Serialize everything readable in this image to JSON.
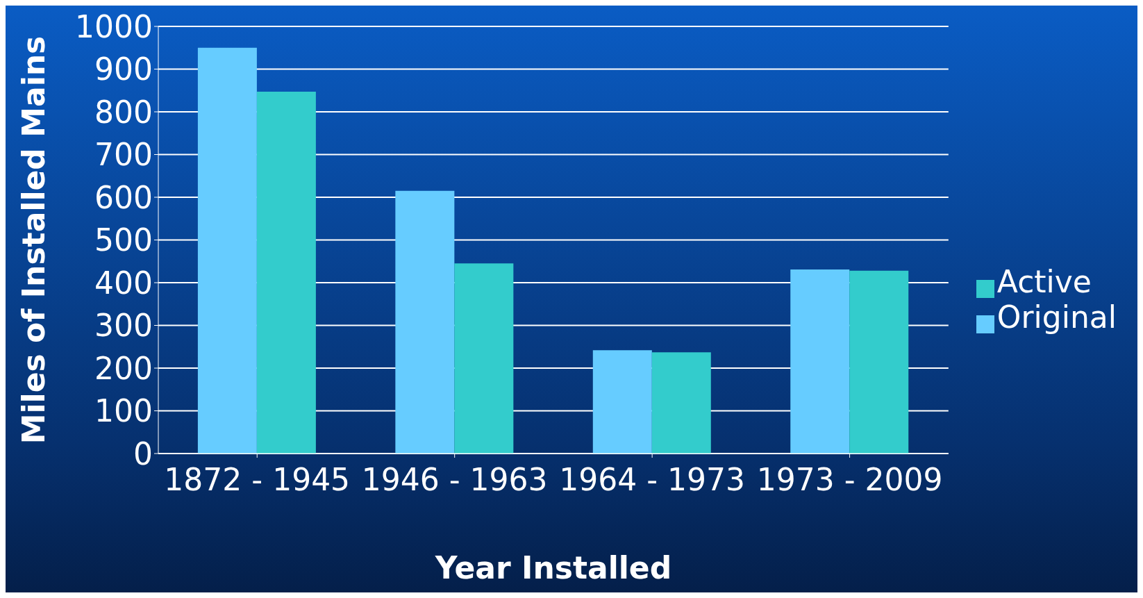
{
  "chart_data": {
    "type": "bar",
    "xlabel": "Year Installed",
    "ylabel": "Miles of Installed Mains",
    "categories": [
      "1872 - 1945",
      "1946 - 1963",
      "1964 - 1973",
      "1973 - 2009"
    ],
    "series": [
      {
        "name": "Original",
        "color": "#66ccff",
        "values": [
          950,
          615,
          242,
          431
        ]
      },
      {
        "name": "Active",
        "color": "#33cccc",
        "values": [
          847,
          445,
          237,
          428
        ]
      }
    ],
    "ylim": [
      0,
      1000
    ],
    "yticks": [
      0,
      100,
      200,
      300,
      400,
      500,
      600,
      700,
      800,
      900,
      1000
    ],
    "grid": "y",
    "legend": "right"
  }
}
